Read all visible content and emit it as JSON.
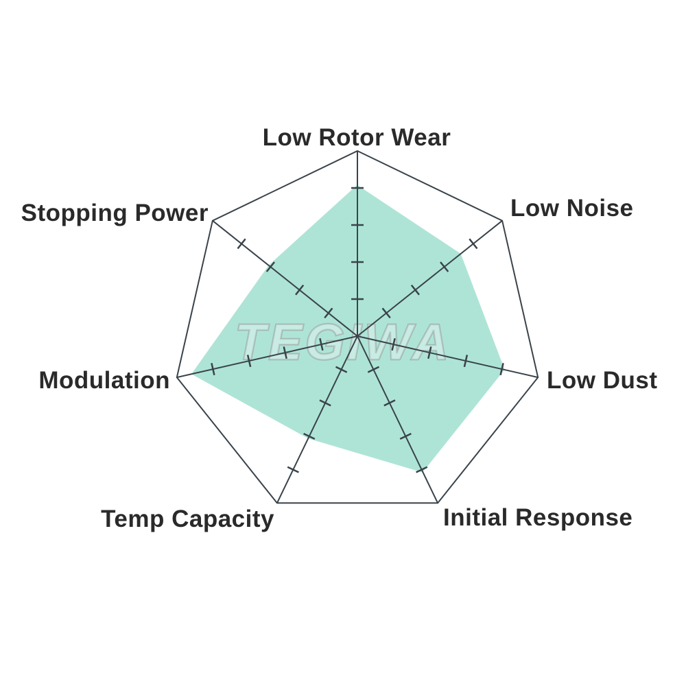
{
  "chart_data": {
    "type": "radar",
    "categories": [
      "Low Rotor Wear",
      "Low Noise",
      "Low Dust",
      "Initial Response",
      "Temp Capacity",
      "Modulation",
      "Stopping Power"
    ],
    "values": [
      8,
      7,
      8,
      8,
      6,
      9,
      6
    ],
    "scale": {
      "min": 0,
      "max": 10,
      "tick_step": 2,
      "axis_tick_values": [
        2,
        4,
        6,
        8
      ]
    },
    "title": "",
    "legend": "none",
    "grid": "radial-spokes-with-ticks-no-rings",
    "num_axes": 7,
    "colors": {
      "fill": "#aee4d6",
      "grid": "#39434a",
      "label": "#2a2a2a"
    }
  },
  "watermark": {
    "text": "TEGIWA",
    "fill": "#ffffff",
    "stroke": "#94a09d"
  }
}
